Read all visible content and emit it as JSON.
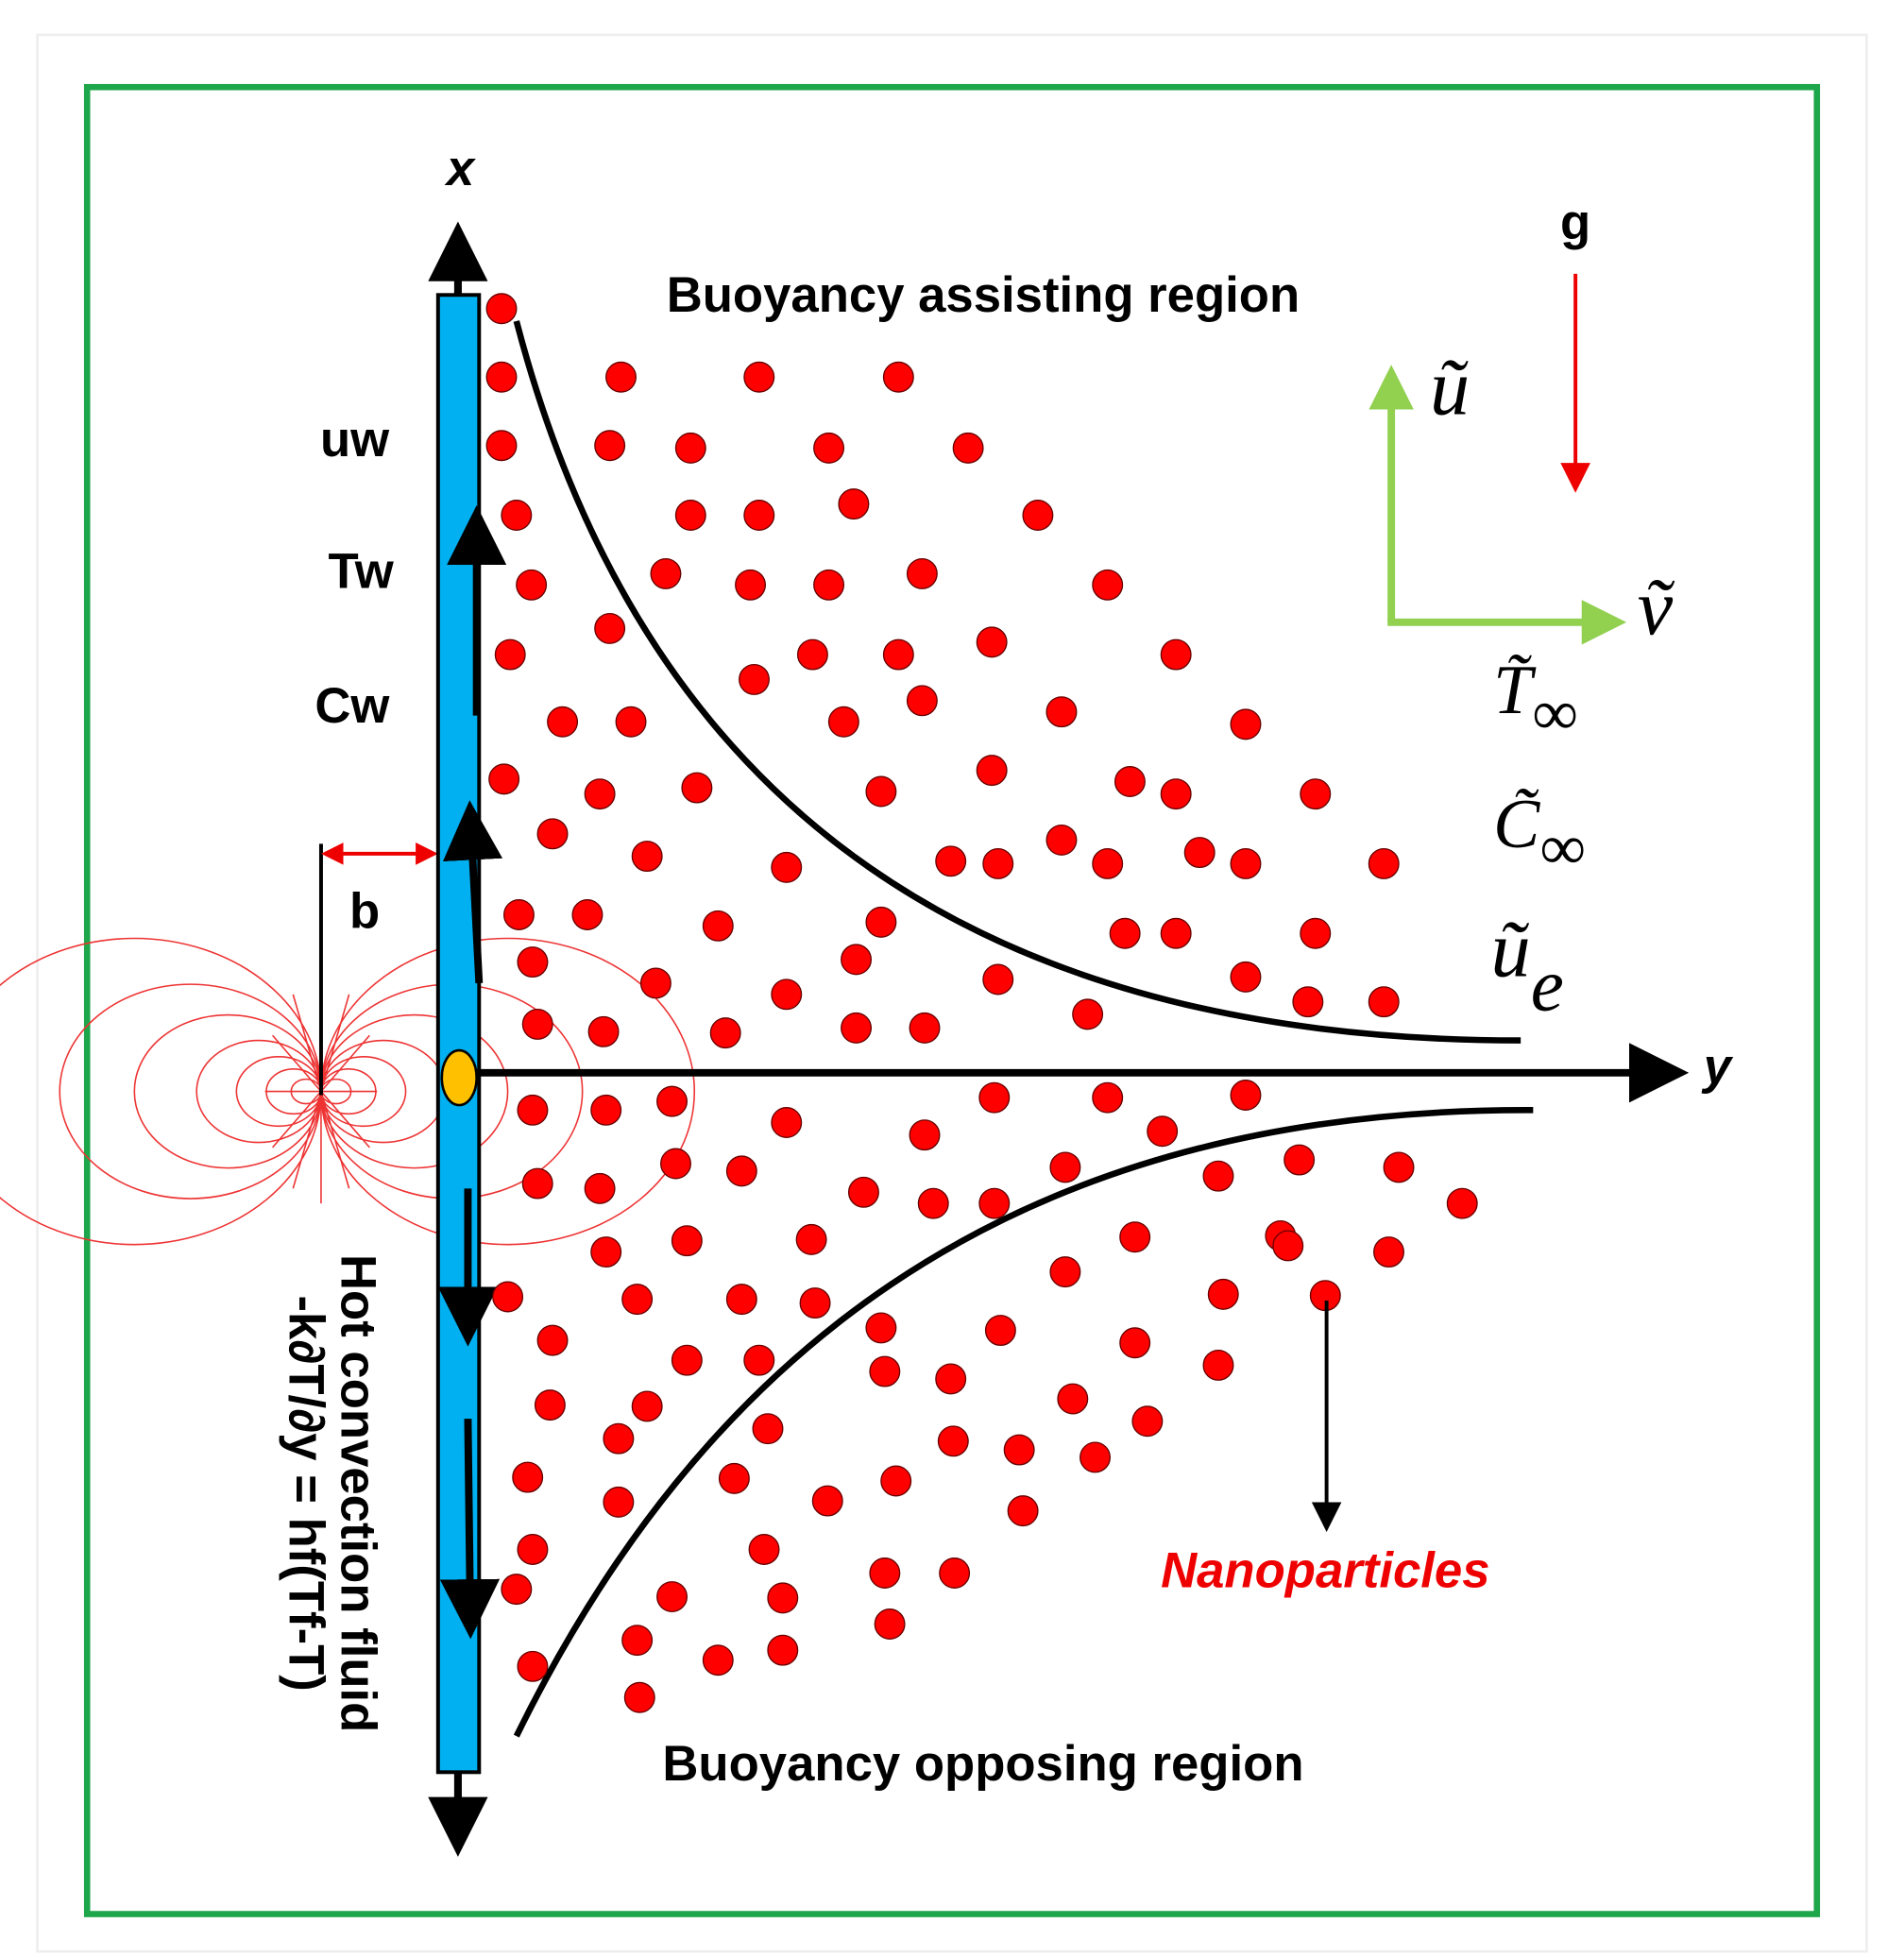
{
  "axes": {
    "x": "x",
    "y": "y"
  },
  "regions": {
    "assisting": "Buoyancy assisting region",
    "opposing": "Buoyancy opposing region"
  },
  "wall_labels": [
    "uw",
    "Tw",
    "Cw"
  ],
  "gap_label": "b",
  "gravity_label": "g",
  "particles_label": "Nanoparticles",
  "boundary_condition": {
    "line1": "Hot convection fluid",
    "line2": "-k∂T/∂y = hf(Tf-T)"
  },
  "velocity_axes": {
    "u": {
      "symbol": "ũ"
    },
    "v": {
      "symbol": "ṽ"
    }
  },
  "free_stream": [
    {
      "symbol": "T̃",
      "subscript": "∞"
    },
    {
      "symbol": "C̃",
      "subscript": "∞"
    },
    {
      "symbol": "ũ",
      "subscript": "e"
    }
  ]
}
